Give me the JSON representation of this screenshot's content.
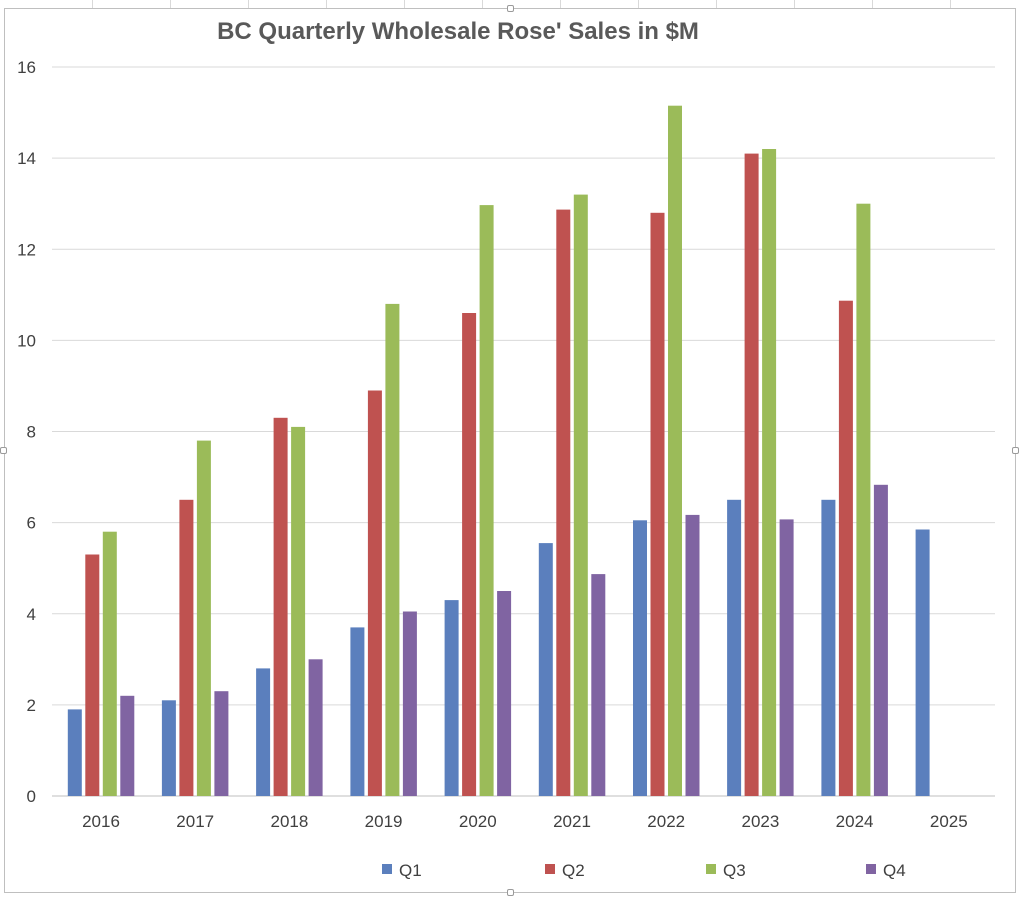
{
  "chart_data": {
    "type": "bar",
    "title": "BC Quarterly Wholesale Rose' Sales  in $M",
    "xlabel": "",
    "ylabel": "",
    "ylim": [
      0,
      16
    ],
    "yticks": [
      0,
      2,
      4,
      6,
      8,
      10,
      12,
      14,
      16
    ],
    "grid": true,
    "legend": "bottom",
    "categories": [
      "2016",
      "2017",
      "2018",
      "2019",
      "2020",
      "2021",
      "2022",
      "2023",
      "2024",
      "2025"
    ],
    "series": [
      {
        "name": "Q1",
        "color": "#5b7fbd",
        "values": [
          1.9,
          2.1,
          2.8,
          3.7,
          4.3,
          5.55,
          6.05,
          6.5,
          6.5,
          5.85
        ]
      },
      {
        "name": "Q2",
        "color": "#bf5250",
        "values": [
          5.3,
          6.5,
          8.3,
          8.9,
          10.6,
          12.87,
          12.8,
          14.1,
          10.87,
          null
        ]
      },
      {
        "name": "Q3",
        "color": "#9bbb59",
        "values": [
          5.8,
          7.8,
          8.1,
          10.8,
          12.97,
          13.2,
          15.15,
          14.2,
          13.0,
          null
        ]
      },
      {
        "name": "Q4",
        "color": "#8064a2",
        "values": [
          2.2,
          2.3,
          3.0,
          4.05,
          4.5,
          4.87,
          6.17,
          6.07,
          6.83,
          null
        ]
      }
    ]
  }
}
